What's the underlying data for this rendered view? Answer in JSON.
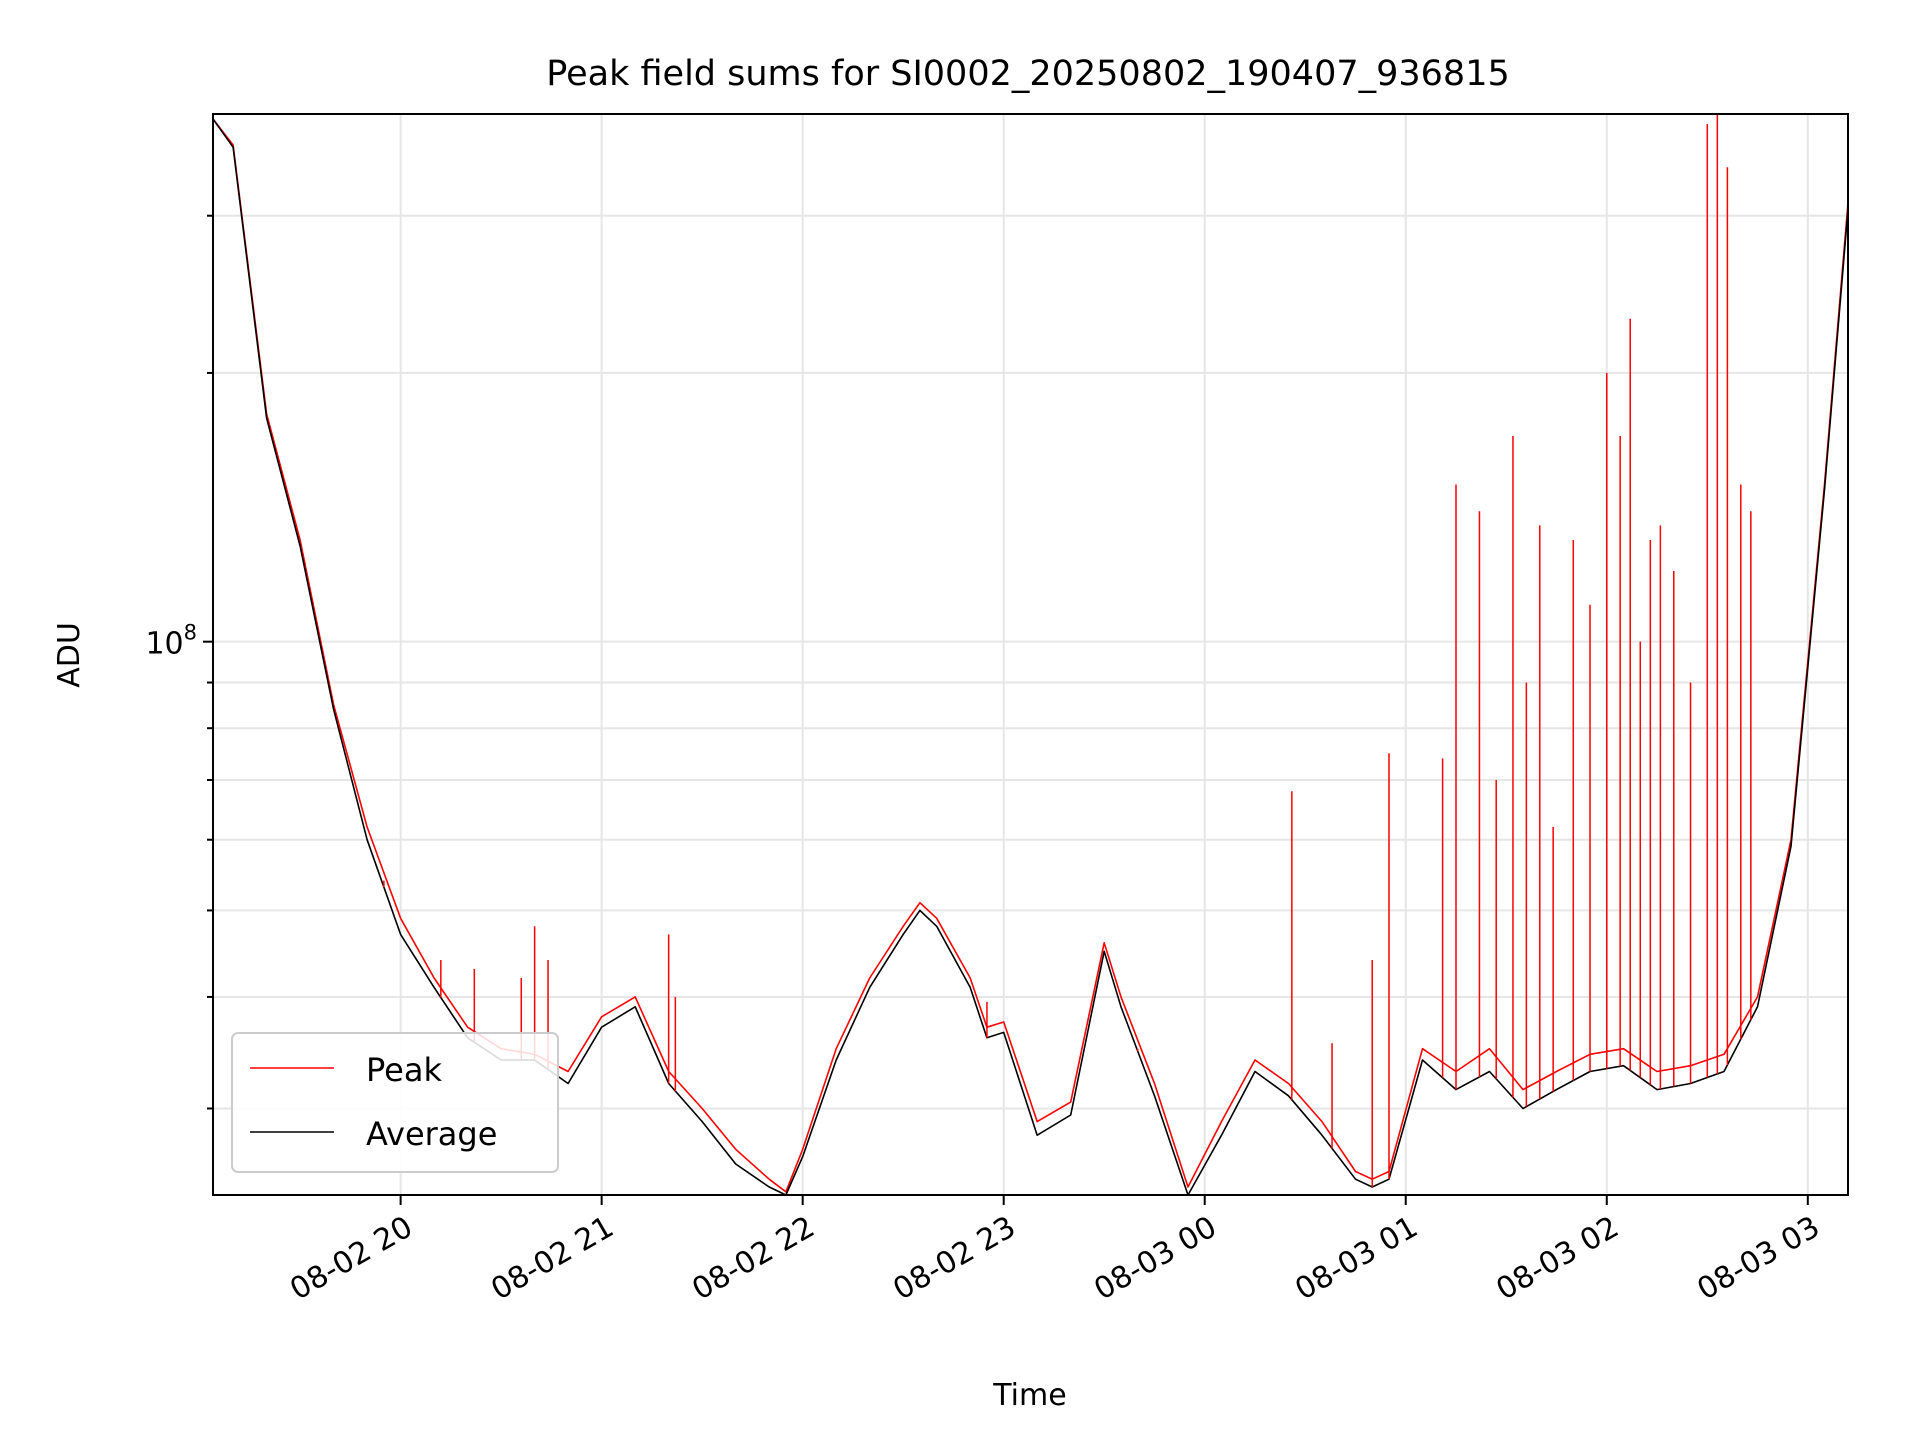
{
  "chart_data": {
    "type": "line",
    "title": "Peak field sums for SI0002_20250802_190407_936815",
    "xlabel": "Time",
    "ylabel": "ADU",
    "yscale": "log",
    "grid": true,
    "legend": "bottom-left",
    "xlim": [
      "2025-08-02 19:04",
      "2025-08-03 03:12"
    ],
    "ylim": [
      24000000,
      390000000
    ],
    "y_major_tick": {
      "value": 100000000,
      "label": "10",
      "exponent": "8"
    },
    "x_ticks": [
      "08-02 20",
      "08-02 21",
      "08-02 22",
      "08-02 23",
      "08-03 00",
      "08-03 01",
      "08-03 02",
      "08-03 03"
    ],
    "colors": {
      "peak": "#ff0000",
      "average": "#000000",
      "grid": "#e6e6e6"
    },
    "series": [
      {
        "name": "Peak",
        "x": [
          "2025-08-02 19:04",
          "2025-08-02 19:10",
          "2025-08-02 19:20",
          "2025-08-02 19:30",
          "2025-08-02 19:40",
          "2025-08-02 19:50",
          "2025-08-02 20:00",
          "2025-08-02 20:10",
          "2025-08-02 20:20",
          "2025-08-02 20:30",
          "2025-08-02 20:40",
          "2025-08-02 20:50",
          "2025-08-02 21:00",
          "2025-08-02 21:10",
          "2025-08-02 21:20",
          "2025-08-02 21:30",
          "2025-08-02 21:40",
          "2025-08-02 21:50",
          "2025-08-02 21:55",
          "2025-08-02 22:00",
          "2025-08-02 22:10",
          "2025-08-02 22:20",
          "2025-08-02 22:30",
          "2025-08-02 22:35",
          "2025-08-02 22:40",
          "2025-08-02 22:50",
          "2025-08-02 22:55",
          "2025-08-02 23:00",
          "2025-08-02 23:10",
          "2025-08-02 23:20",
          "2025-08-02 23:30",
          "2025-08-02 23:35",
          "2025-08-02 23:45",
          "2025-08-02 23:55",
          "2025-08-03 00:05",
          "2025-08-03 00:15",
          "2025-08-03 00:25",
          "2025-08-03 00:35",
          "2025-08-03 00:45",
          "2025-08-03 00:50",
          "2025-08-03 00:55",
          "2025-08-03 01:05",
          "2025-08-03 01:15",
          "2025-08-03 01:25",
          "2025-08-03 01:35",
          "2025-08-03 01:45",
          "2025-08-03 01:55",
          "2025-08-03 02:05",
          "2025-08-03 02:15",
          "2025-08-03 02:25",
          "2025-08-03 02:35",
          "2025-08-03 02:45",
          "2025-08-03 02:55",
          "2025-08-03 03:05",
          "2025-08-03 03:12"
        ],
        "values": [
          385000000,
          360000000,
          180000000,
          130000000,
          85000000,
          62000000,
          49000000,
          42000000,
          37000000,
          35000000,
          34500000,
          33000000,
          38000000,
          40000000,
          33000000,
          30000000,
          27000000,
          25000000,
          24200000,
          27000000,
          35000000,
          42000000,
          48000000,
          51000000,
          49000000,
          42000000,
          37000000,
          37500000,
          29000000,
          30500000,
          46000000,
          40000000,
          32000000,
          24500000,
          29000000,
          34000000,
          32000000,
          29000000,
          25500000,
          25000000,
          25500000,
          35000000,
          33000000,
          35000000,
          31500000,
          33000000,
          34500000,
          35000000,
          33000000,
          33500000,
          34500000,
          40000000,
          60000000,
          150000000,
          310000000
        ]
      },
      {
        "name": "Average",
        "x": [
          "2025-08-02 19:04",
          "2025-08-02 19:10",
          "2025-08-02 19:20",
          "2025-08-02 19:30",
          "2025-08-02 19:40",
          "2025-08-02 19:50",
          "2025-08-02 20:00",
          "2025-08-02 20:10",
          "2025-08-02 20:20",
          "2025-08-02 20:30",
          "2025-08-02 20:40",
          "2025-08-02 20:50",
          "2025-08-02 21:00",
          "2025-08-02 21:10",
          "2025-08-02 21:20",
          "2025-08-02 21:30",
          "2025-08-02 21:40",
          "2025-08-02 21:50",
          "2025-08-02 21:55",
          "2025-08-02 22:00",
          "2025-08-02 22:10",
          "2025-08-02 22:20",
          "2025-08-02 22:30",
          "2025-08-02 22:35",
          "2025-08-02 22:40",
          "2025-08-02 22:50",
          "2025-08-02 22:55",
          "2025-08-02 23:00",
          "2025-08-02 23:10",
          "2025-08-02 23:20",
          "2025-08-02 23:30",
          "2025-08-02 23:35",
          "2025-08-02 23:45",
          "2025-08-02 23:55",
          "2025-08-03 00:05",
          "2025-08-03 00:15",
          "2025-08-03 00:25",
          "2025-08-03 00:35",
          "2025-08-03 00:45",
          "2025-08-03 00:50",
          "2025-08-03 00:55",
          "2025-08-03 01:05",
          "2025-08-03 01:15",
          "2025-08-03 01:25",
          "2025-08-03 01:35",
          "2025-08-03 01:45",
          "2025-08-03 01:55",
          "2025-08-03 02:05",
          "2025-08-03 02:15",
          "2025-08-03 02:25",
          "2025-08-03 02:35",
          "2025-08-03 02:45",
          "2025-08-03 02:55",
          "2025-08-03 03:05",
          "2025-08-03 03:12"
        ],
        "values": [
          385000000,
          358000000,
          178000000,
          128000000,
          84000000,
          60000000,
          47000000,
          41000000,
          36000000,
          34000000,
          34000000,
          32000000,
          37000000,
          39000000,
          32000000,
          29000000,
          26000000,
          24500000,
          24000000,
          26500000,
          34000000,
          41000000,
          47000000,
          50000000,
          48000000,
          41000000,
          36000000,
          36500000,
          28000000,
          29500000,
          45000000,
          39000000,
          31000000,
          24000000,
          28000000,
          33000000,
          31000000,
          28000000,
          25000000,
          24500000,
          25000000,
          34000000,
          31500000,
          33000000,
          30000000,
          31500000,
          33000000,
          33500000,
          31500000,
          32000000,
          33000000,
          39000000,
          59000000,
          148000000,
          305000000
        ]
      }
    ],
    "peak_spikes": [
      {
        "x": "2025-08-02 19:55",
        "value": 54000000
      },
      {
        "x": "2025-08-02 20:12",
        "value": 44000000
      },
      {
        "x": "2025-08-02 20:22",
        "value": 43000000
      },
      {
        "x": "2025-08-02 20:36",
        "value": 42000000
      },
      {
        "x": "2025-08-02 20:40",
        "value": 48000000
      },
      {
        "x": "2025-08-02 20:44",
        "value": 44000000
      },
      {
        "x": "2025-08-02 21:20",
        "value": 47000000
      },
      {
        "x": "2025-08-02 21:22",
        "value": 40000000
      },
      {
        "x": "2025-08-02 22:55",
        "value": 39500000
      },
      {
        "x": "2025-08-02 23:40",
        "value": 35000000
      },
      {
        "x": "2025-08-03 00:26",
        "value": 68000000
      },
      {
        "x": "2025-08-03 00:38",
        "value": 35500000
      },
      {
        "x": "2025-08-03 00:50",
        "value": 44000000
      },
      {
        "x": "2025-08-03 00:55",
        "value": 75000000
      },
      {
        "x": "2025-08-03 01:11",
        "value": 74000000
      },
      {
        "x": "2025-08-03 01:15",
        "value": 150000000
      },
      {
        "x": "2025-08-03 01:22",
        "value": 140000000
      },
      {
        "x": "2025-08-03 01:27",
        "value": 70000000
      },
      {
        "x": "2025-08-03 01:32",
        "value": 170000000
      },
      {
        "x": "2025-08-03 01:36",
        "value": 90000000
      },
      {
        "x": "2025-08-03 01:40",
        "value": 135000000
      },
      {
        "x": "2025-08-03 01:44",
        "value": 62000000
      },
      {
        "x": "2025-08-03 01:50",
        "value": 130000000
      },
      {
        "x": "2025-08-03 01:55",
        "value": 110000000
      },
      {
        "x": "2025-08-03 02:00",
        "value": 200000000
      },
      {
        "x": "2025-08-03 02:04",
        "value": 170000000
      },
      {
        "x": "2025-08-03 02:07",
        "value": 230000000
      },
      {
        "x": "2025-08-03 02:10",
        "value": 100000000
      },
      {
        "x": "2025-08-03 02:13",
        "value": 130000000
      },
      {
        "x": "2025-08-03 02:16",
        "value": 135000000
      },
      {
        "x": "2025-08-03 02:20",
        "value": 120000000
      },
      {
        "x": "2025-08-03 02:25",
        "value": 90000000
      },
      {
        "x": "2025-08-03 02:30",
        "value": 380000000
      },
      {
        "x": "2025-08-03 02:33",
        "value": 390000000
      },
      {
        "x": "2025-08-03 02:36",
        "value": 340000000
      },
      {
        "x": "2025-08-03 02:40",
        "value": 150000000
      },
      {
        "x": "2025-08-03 02:43",
        "value": 140000000
      }
    ]
  }
}
